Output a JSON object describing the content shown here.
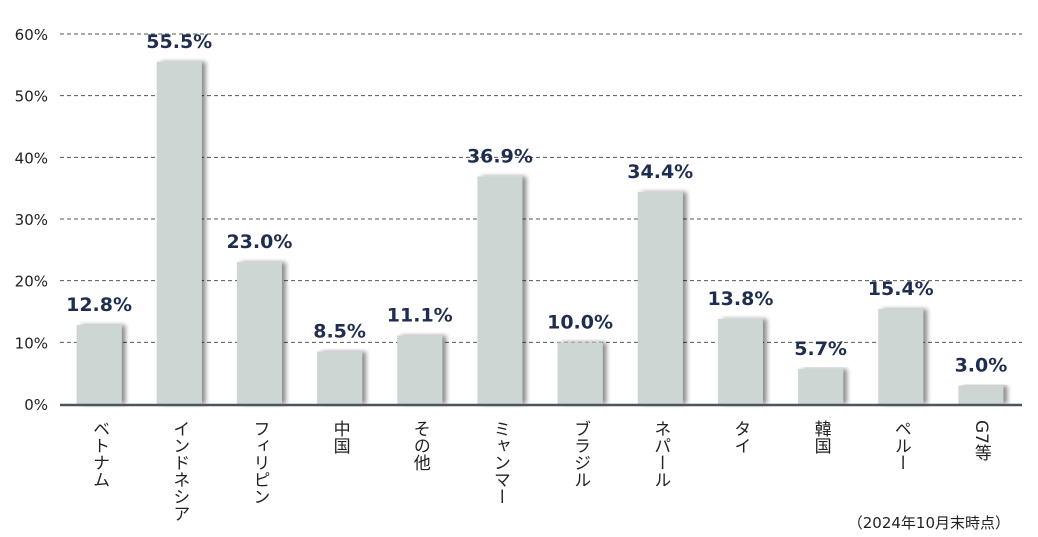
{
  "chart_data": {
    "type": "bar",
    "categories": [
      "ベトナム",
      "インドネシア",
      "フィリピン",
      "中国",
      "その他",
      "ミャンマー",
      "ブラジル",
      "ネパール",
      "タイ",
      "韓国",
      "ペルー",
      "G7等"
    ],
    "values": [
      12.8,
      55.5,
      23.0,
      8.5,
      11.1,
      36.9,
      10.0,
      34.4,
      13.8,
      5.7,
      15.4,
      3.0
    ],
    "value_labels": [
      "12.8%",
      "55.5%",
      "23.0%",
      "8.5%",
      "11.1%",
      "36.9%",
      "10.0%",
      "34.4%",
      "13.8%",
      "5.7%",
      "15.4%",
      "3.0%"
    ],
    "yticks": [
      0,
      10,
      20,
      30,
      40,
      50,
      60
    ],
    "ytick_labels": [
      "0%",
      "10%",
      "20%",
      "30%",
      "40%",
      "50%",
      "60%"
    ],
    "ylim": [
      0,
      60
    ],
    "grid": true,
    "title": "",
    "xlabel": "",
    "ylabel": "",
    "colors": {
      "bar": "#cdd6d3",
      "label": "#1f2d50",
      "axis": "#4a5560",
      "grid": "#555555"
    }
  },
  "footnote": "（2024年10月末時点）"
}
